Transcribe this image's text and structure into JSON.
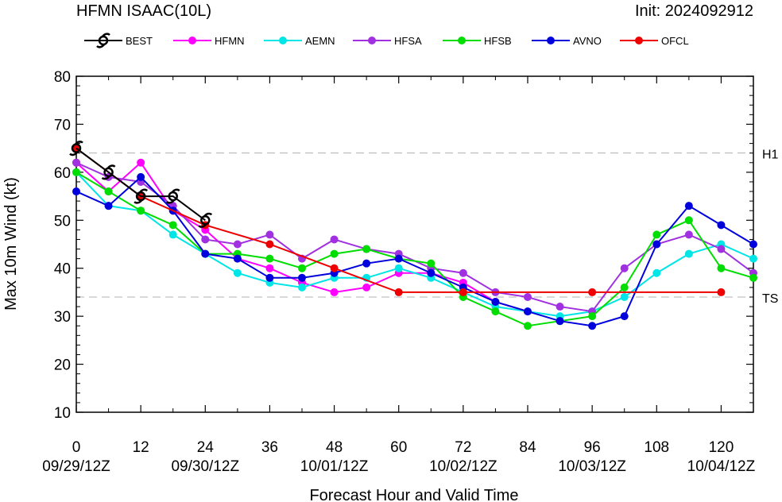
{
  "header": {
    "title": "HFMN ISAAC(10L)",
    "init": "Init: 2024092912"
  },
  "chart_data": {
    "type": "line",
    "title": "HFMN ISAAC(10L)",
    "ylabel": "Max 10m Wind (kt)",
    "xlabel": "Forecast Hour and Valid Time",
    "xlim": [
      0,
      126
    ],
    "ylim": [
      10,
      80
    ],
    "x_ticks": [
      0,
      12,
      24,
      36,
      48,
      60,
      72,
      84,
      96,
      108,
      120
    ],
    "x_tick_labels": [
      "0",
      "12",
      "24",
      "36",
      "48",
      "60",
      "72",
      "84",
      "96",
      "108",
      "120"
    ],
    "date_labels": [
      {
        "x": 0,
        "label": "09/29/12Z"
      },
      {
        "x": 24,
        "label": "09/30/12Z"
      },
      {
        "x": 48,
        "label": "10/01/12Z"
      },
      {
        "x": 72,
        "label": "10/02/12Z"
      },
      {
        "x": 96,
        "label": "10/03/12Z"
      },
      {
        "x": 120,
        "label": "10/04/12Z"
      }
    ],
    "y_ticks": [
      10,
      20,
      30,
      40,
      50,
      60,
      70,
      80
    ],
    "reference_lines": [
      {
        "value": 64,
        "label": "H1"
      },
      {
        "value": 34,
        "label": "TS"
      }
    ],
    "grid": false,
    "legend_position": "top",
    "series": [
      {
        "name": "BEST",
        "color": "#000000",
        "marker": "hurricane-symbol",
        "x": [
          0,
          6,
          12,
          18,
          24
        ],
        "values": [
          65,
          60,
          55,
          55,
          50
        ]
      },
      {
        "name": "HFMN",
        "color": "#ff00ff",
        "marker": "circle",
        "x": [
          0,
          6,
          12,
          18,
          24,
          30,
          36,
          42,
          48,
          54,
          60,
          66,
          72,
          78,
          84
        ],
        "values": [
          62,
          56,
          62,
          52,
          48,
          42,
          40,
          37,
          35,
          36,
          39,
          39,
          37,
          33,
          31
        ]
      },
      {
        "name": "AEMN",
        "color": "#00e5e5",
        "marker": "circle",
        "x": [
          0,
          6,
          12,
          18,
          24,
          30,
          36,
          42,
          48,
          54,
          60,
          66,
          72,
          78,
          84,
          90,
          96,
          102,
          108,
          114,
          120,
          126
        ],
        "values": [
          60,
          53,
          52,
          47,
          43,
          39,
          37,
          36,
          38,
          38,
          40,
          38,
          35,
          32,
          31,
          30,
          31,
          34,
          39,
          43,
          45,
          42
        ]
      },
      {
        "name": "HFSA",
        "color": "#a030e0",
        "marker": "circle",
        "x": [
          0,
          6,
          12,
          18,
          24,
          30,
          36,
          42,
          48,
          54,
          60,
          66,
          72,
          78,
          84,
          90,
          96,
          102,
          108,
          114,
          120,
          126
        ],
        "values": [
          62,
          59,
          58,
          53,
          46,
          45,
          47,
          42,
          46,
          44,
          43,
          40,
          39,
          35,
          34,
          32,
          31,
          40,
          45,
          47,
          44,
          39
        ]
      },
      {
        "name": "HFSB",
        "color": "#00dd00",
        "marker": "circle",
        "x": [
          0,
          6,
          12,
          18,
          24,
          30,
          36,
          42,
          48,
          54,
          60,
          66,
          72,
          78,
          84,
          90,
          96,
          102,
          108,
          114,
          120,
          126
        ],
        "values": [
          60,
          56,
          52,
          49,
          43,
          43,
          42,
          40,
          43,
          44,
          42,
          41,
          34,
          31,
          28,
          29,
          30,
          36,
          47,
          50,
          40,
          38
        ]
      },
      {
        "name": "AVNO",
        "color": "#0000dd",
        "marker": "circle",
        "x": [
          0,
          6,
          12,
          18,
          24,
          30,
          36,
          42,
          48,
          54,
          60,
          66,
          72,
          78,
          84,
          90,
          96,
          102,
          108,
          114,
          120,
          126
        ],
        "values": [
          56,
          53,
          59,
          52,
          43,
          42,
          38,
          38,
          39,
          41,
          42,
          39,
          36,
          33,
          31,
          29,
          28,
          30,
          45,
          53,
          49,
          45
        ]
      },
      {
        "name": "OFCL",
        "color": "#ee0000",
        "marker": "circle",
        "x": [
          0,
          12,
          24,
          36,
          48,
          60,
          72,
          96,
          120
        ],
        "values": [
          65,
          55,
          49,
          45,
          40,
          35,
          35,
          35,
          35
        ]
      }
    ]
  }
}
